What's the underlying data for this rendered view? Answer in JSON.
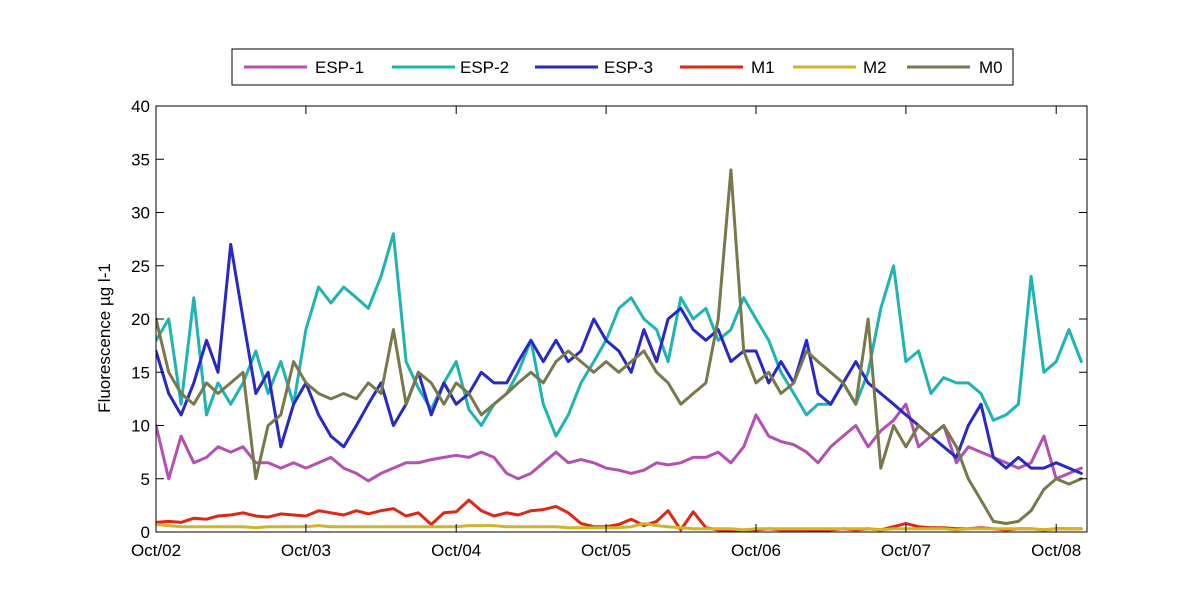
{
  "chart_data": {
    "type": "line",
    "title": "",
    "xlabel": "",
    "ylabel": "Fluorescence µg l-1",
    "xlim": [
      "2002-10-01",
      "2008-12-15"
    ],
    "ylim": [
      0,
      40
    ],
    "x_ticks": [
      "Oct/02",
      "Oct/03",
      "Oct/04",
      "Oct/05",
      "Oct/06",
      "Oct/07",
      "Oct/08"
    ],
    "x_tick_dates": [
      "2002-10-01",
      "2003-10-01",
      "2004-10-01",
      "2005-10-01",
      "2006-10-01",
      "2007-10-01",
      "2008-10-01"
    ],
    "y_ticks": [
      0,
      5,
      10,
      15,
      20,
      25,
      30,
      35,
      40
    ],
    "grid": false,
    "legend_position": "top",
    "series": [
      {
        "name": "ESP-1",
        "color": "#b450b4",
        "x": [
          "2002-10-01",
          "2002-11-01",
          "2002-12-01",
          "2003-01-01",
          "2003-02-01",
          "2003-03-01",
          "2003-04-01",
          "2003-05-01",
          "2003-06-01",
          "2003-07-01",
          "2003-08-01",
          "2003-09-01",
          "2003-10-01",
          "2003-11-01",
          "2003-12-01",
          "2004-01-01",
          "2004-02-01",
          "2004-03-01",
          "2004-04-01",
          "2004-05-01",
          "2004-06-01",
          "2004-07-01",
          "2004-08-01",
          "2004-09-01",
          "2004-10-01",
          "2004-11-01",
          "2004-12-01",
          "2005-01-01",
          "2005-02-01",
          "2005-03-01",
          "2005-04-01",
          "2005-05-01",
          "2005-06-01",
          "2005-07-01",
          "2005-08-01",
          "2005-09-01",
          "2005-10-01",
          "2005-11-01",
          "2005-12-01",
          "2006-01-01",
          "2006-02-01",
          "2006-03-01",
          "2006-04-01",
          "2006-05-01",
          "2006-06-01",
          "2006-07-01",
          "2006-08-01",
          "2006-09-01",
          "2006-10-01",
          "2006-11-01",
          "2006-12-01",
          "2007-01-01",
          "2007-02-01",
          "2007-03-01",
          "2007-04-01",
          "2007-05-01",
          "2007-06-01",
          "2007-07-01",
          "2007-08-01",
          "2007-09-01",
          "2007-10-01",
          "2007-11-01",
          "2007-12-01",
          "2008-01-01",
          "2008-02-01",
          "2008-03-01",
          "2008-04-01",
          "2008-05-01",
          "2008-06-01",
          "2008-07-01",
          "2008-08-01",
          "2008-09-01",
          "2008-10-01",
          "2008-11-01",
          "2008-12-01"
        ],
        "values": [
          10,
          5,
          9,
          6.5,
          7,
          8,
          7.5,
          8,
          6.5,
          6.5,
          6,
          6.5,
          6,
          6.5,
          7,
          6,
          5.5,
          4.8,
          5.5,
          6,
          6.5,
          6.5,
          6.8,
          7,
          7.2,
          7,
          7.5,
          7,
          5.5,
          5,
          5.5,
          6.5,
          7.5,
          6.5,
          6.8,
          6.5,
          6,
          5.8,
          5.5,
          5.8,
          6.5,
          6.3,
          6.5,
          7,
          7,
          7.5,
          6.5,
          8,
          11,
          9,
          8.5,
          8.2,
          7.5,
          6.5,
          8,
          9,
          10,
          8,
          9.5,
          10.5,
          12,
          8,
          9,
          10,
          6.5,
          8,
          7.5,
          7,
          6.5,
          6,
          6.5,
          9,
          5,
          5.5,
          6
        ]
      },
      {
        "name": "ESP-2",
        "color": "#1eb4b4",
        "x": [
          "2002-10-01",
          "2002-11-01",
          "2002-12-01",
          "2003-01-01",
          "2003-02-01",
          "2003-03-01",
          "2003-04-01",
          "2003-05-01",
          "2003-06-01",
          "2003-07-01",
          "2003-08-01",
          "2003-09-01",
          "2003-10-01",
          "2003-11-01",
          "2003-12-01",
          "2004-01-01",
          "2004-02-01",
          "2004-03-01",
          "2004-04-01",
          "2004-05-01",
          "2004-06-01",
          "2004-07-01",
          "2004-08-01",
          "2004-09-01",
          "2004-10-01",
          "2004-11-01",
          "2004-12-01",
          "2005-01-01",
          "2005-02-01",
          "2005-03-01",
          "2005-04-01",
          "2005-05-01",
          "2005-06-01",
          "2005-07-01",
          "2005-08-01",
          "2005-09-01",
          "2005-10-01",
          "2005-11-01",
          "2005-12-01",
          "2006-01-01",
          "2006-02-01",
          "2006-03-01",
          "2006-04-01",
          "2006-05-01",
          "2006-06-01",
          "2006-07-01",
          "2006-08-01",
          "2006-09-01",
          "2006-10-01",
          "2006-11-01",
          "2006-12-01",
          "2007-01-01",
          "2007-02-01",
          "2007-03-01",
          "2007-04-01",
          "2007-05-01",
          "2007-06-01",
          "2007-07-01",
          "2007-08-01",
          "2007-09-01",
          "2007-10-01",
          "2007-11-01",
          "2007-12-01",
          "2008-01-01",
          "2008-02-01",
          "2008-03-01",
          "2008-04-01",
          "2008-05-01",
          "2008-06-01",
          "2008-07-01",
          "2008-08-01",
          "2008-09-01",
          "2008-10-01",
          "2008-11-01",
          "2008-12-01"
        ],
        "values": [
          18,
          20,
          12,
          22,
          11,
          14,
          12,
          14,
          17,
          13,
          16,
          12,
          19,
          23,
          21.5,
          23,
          22,
          21,
          24,
          28,
          16,
          13.5,
          11.5,
          14,
          16,
          11.5,
          10,
          12,
          13,
          15,
          18,
          12,
          9,
          11,
          14,
          16,
          18,
          21,
          22,
          20,
          19,
          16,
          22,
          20,
          21,
          18,
          19,
          22,
          20,
          18,
          15,
          13,
          11,
          12,
          12,
          14,
          12,
          15,
          21,
          25,
          16,
          17,
          13,
          14.5,
          14,
          14,
          13,
          10.5,
          11,
          12,
          24,
          15,
          16,
          19,
          16
        ]
      },
      {
        "name": "ESP-3",
        "color": "#2828c8",
        "x": [
          "2002-10-01",
          "2002-11-01",
          "2002-12-01",
          "2003-01-01",
          "2003-02-01",
          "2003-03-01",
          "2003-04-01",
          "2003-05-01",
          "2003-06-01",
          "2003-07-01",
          "2003-08-01",
          "2003-09-01",
          "2003-10-01",
          "2003-11-01",
          "2003-12-01",
          "2004-01-01",
          "2004-02-01",
          "2004-03-01",
          "2004-04-01",
          "2004-05-01",
          "2004-06-01",
          "2004-07-01",
          "2004-08-01",
          "2004-09-01",
          "2004-10-01",
          "2004-11-01",
          "2004-12-01",
          "2005-01-01",
          "2005-02-01",
          "2005-03-01",
          "2005-04-01",
          "2005-05-01",
          "2005-06-01",
          "2005-07-01",
          "2005-08-01",
          "2005-09-01",
          "2005-10-01",
          "2005-11-01",
          "2005-12-01",
          "2006-01-01",
          "2006-02-01",
          "2006-03-01",
          "2006-04-01",
          "2006-05-01",
          "2006-06-01",
          "2006-07-01",
          "2006-08-01",
          "2006-09-01",
          "2006-10-01",
          "2006-11-01",
          "2006-12-01",
          "2007-01-01",
          "2007-02-01",
          "2007-03-01",
          "2007-04-01",
          "2007-05-01",
          "2007-06-01",
          "2007-07-01",
          "2007-08-01",
          "2007-09-01",
          "2007-10-01",
          "2007-11-01",
          "2007-12-01",
          "2008-01-01",
          "2008-02-01",
          "2008-03-01",
          "2008-04-01",
          "2008-05-01",
          "2008-06-01",
          "2008-07-01",
          "2008-08-01",
          "2008-09-01",
          "2008-10-01",
          "2008-11-01",
          "2008-12-01"
        ],
        "values": [
          17,
          13,
          11,
          14,
          18,
          15,
          27,
          20,
          13,
          15,
          8,
          12,
          14,
          11,
          9,
          8,
          10,
          12,
          14,
          10,
          12,
          15,
          11,
          14,
          12,
          13,
          15,
          14,
          14,
          16,
          18,
          16,
          18,
          16,
          17,
          20,
          18,
          17,
          15,
          19,
          16,
          20,
          21,
          19,
          18,
          19,
          16,
          17,
          17,
          14,
          16,
          14,
          18,
          13,
          12,
          14,
          16,
          14,
          13,
          12,
          11,
          10,
          9,
          8,
          7,
          10,
          12,
          7,
          6,
          7,
          6,
          6,
          6.5,
          6,
          5.5
        ]
      },
      {
        "name": "M1",
        "color": "#dc2814",
        "x": [
          "2002-10-01",
          "2002-11-01",
          "2002-12-01",
          "2003-01-01",
          "2003-02-01",
          "2003-03-01",
          "2003-04-01",
          "2003-05-01",
          "2003-06-01",
          "2003-07-01",
          "2003-08-01",
          "2003-09-01",
          "2003-10-01",
          "2003-11-01",
          "2003-12-01",
          "2004-01-01",
          "2004-02-01",
          "2004-03-01",
          "2004-04-01",
          "2004-05-01",
          "2004-06-01",
          "2004-07-01",
          "2004-08-01",
          "2004-09-01",
          "2004-10-01",
          "2004-11-01",
          "2004-12-01",
          "2005-01-01",
          "2005-02-01",
          "2005-03-01",
          "2005-04-01",
          "2005-05-01",
          "2005-06-01",
          "2005-07-01",
          "2005-08-01",
          "2005-09-01",
          "2005-10-01",
          "2005-11-01",
          "2005-12-01",
          "2006-01-01",
          "2006-02-01",
          "2006-03-01",
          "2006-04-01",
          "2006-05-01",
          "2006-06-01",
          "2006-07-01",
          "2006-08-01",
          "2006-09-01",
          "2006-10-01",
          "2006-11-01",
          "2006-12-01",
          "2007-01-01",
          "2007-02-01",
          "2007-03-01",
          "2007-04-01",
          "2007-05-01",
          "2007-06-01",
          "2007-07-01",
          "2007-08-01",
          "2007-09-01",
          "2007-10-01",
          "2007-11-01",
          "2007-12-01",
          "2008-01-01",
          "2008-02-01",
          "2008-03-01",
          "2008-04-01",
          "2008-05-01",
          "2008-06-01",
          "2008-07-01",
          "2008-08-01",
          "2008-09-01",
          "2008-10-01",
          "2008-11-01",
          "2008-12-01"
        ],
        "values": [
          0.9,
          1,
          0.9,
          1.3,
          1.2,
          1.5,
          1.6,
          1.8,
          1.5,
          1.4,
          1.7,
          1.6,
          1.5,
          2,
          1.8,
          1.6,
          2,
          1.7,
          2,
          2.2,
          1.5,
          1.8,
          0.7,
          1.8,
          1.9,
          3,
          2,
          1.5,
          1.8,
          1.6,
          2,
          2.1,
          2.4,
          1.8,
          0.8,
          0.5,
          0.5,
          0.7,
          1.2,
          0.6,
          1,
          2,
          0.2,
          1.9,
          0.4,
          0.2,
          0.1,
          0.2,
          0.2,
          0.3,
          0.2,
          0.2,
          0.2,
          0.1,
          0.2,
          0.3,
          0.2,
          0.3,
          0.2,
          0.5,
          0.8,
          0.5,
          0.4,
          0.4,
          0.3,
          0.3,
          0.4,
          0.3,
          0.2,
          0.3,
          0.3,
          0.2,
          0.3,
          0.3,
          0.3
        ]
      },
      {
        "name": "M2",
        "color": "#d2b428",
        "x": [
          "2002-10-01",
          "2002-11-01",
          "2002-12-01",
          "2003-01-01",
          "2003-02-01",
          "2003-03-01",
          "2003-04-01",
          "2003-05-01",
          "2003-06-01",
          "2003-07-01",
          "2003-08-01",
          "2003-09-01",
          "2003-10-01",
          "2003-11-01",
          "2003-12-01",
          "2004-01-01",
          "2004-02-01",
          "2004-03-01",
          "2004-04-01",
          "2004-05-01",
          "2004-06-01",
          "2004-07-01",
          "2004-08-01",
          "2004-09-01",
          "2004-10-01",
          "2004-11-01",
          "2004-12-01",
          "2005-01-01",
          "2005-02-01",
          "2005-03-01",
          "2005-04-01",
          "2005-05-01",
          "2005-06-01",
          "2005-07-01",
          "2005-08-01",
          "2005-09-01",
          "2005-10-01",
          "2005-11-01",
          "2005-12-01",
          "2006-01-01",
          "2006-02-01",
          "2006-03-01",
          "2006-04-01",
          "2006-05-01",
          "2006-06-01",
          "2006-07-01",
          "2006-08-01",
          "2006-09-01",
          "2006-10-01",
          "2006-11-01",
          "2006-12-01",
          "2007-01-01",
          "2007-02-01",
          "2007-03-01",
          "2007-04-01",
          "2007-05-01",
          "2007-06-01",
          "2007-07-01",
          "2007-08-01",
          "2007-09-01",
          "2007-10-01",
          "2007-11-01",
          "2007-12-01",
          "2008-01-01",
          "2008-02-01",
          "2008-03-01",
          "2008-04-01",
          "2008-05-01",
          "2008-06-01",
          "2008-07-01",
          "2008-08-01",
          "2008-09-01",
          "2008-10-01",
          "2008-11-01",
          "2008-12-01"
        ],
        "values": [
          0.7,
          0.6,
          0.5,
          0.5,
          0.5,
          0.5,
          0.5,
          0.5,
          0.4,
          0.5,
          0.5,
          0.5,
          0.5,
          0.6,
          0.5,
          0.5,
          0.5,
          0.5,
          0.5,
          0.5,
          0.5,
          0.5,
          0.5,
          0.5,
          0.5,
          0.6,
          0.6,
          0.6,
          0.5,
          0.5,
          0.5,
          0.5,
          0.5,
          0.4,
          0.4,
          0.4,
          0.4,
          0.4,
          0.5,
          0.8,
          0.6,
          0.5,
          0.4,
          0.3,
          0.3,
          0.3,
          0.3,
          0.2,
          0.3,
          0.3,
          0.3,
          0.3,
          0.3,
          0.3,
          0.3,
          0.3,
          0.3,
          0.3,
          0.2,
          0.3,
          0.3,
          0.3,
          0.3,
          0.3,
          0.2,
          0.3,
          0.3,
          0.3,
          0.3,
          0.3,
          0.3,
          0.2,
          0.3,
          0.3,
          0.3
        ]
      },
      {
        "name": "M0",
        "color": "#78784b",
        "x": [
          "2002-10-01",
          "2002-11-01",
          "2002-12-01",
          "2003-01-01",
          "2003-02-01",
          "2003-03-01",
          "2003-04-01",
          "2003-05-01",
          "2003-06-01",
          "2003-07-01",
          "2003-08-01",
          "2003-09-01",
          "2003-10-01",
          "2003-11-01",
          "2003-12-01",
          "2004-01-01",
          "2004-02-01",
          "2004-03-01",
          "2004-04-01",
          "2004-05-01",
          "2004-06-01",
          "2004-07-01",
          "2004-08-01",
          "2004-09-01",
          "2004-10-01",
          "2004-11-01",
          "2004-12-01",
          "2005-01-01",
          "2005-02-01",
          "2005-03-01",
          "2005-04-01",
          "2005-05-01",
          "2005-06-01",
          "2005-07-01",
          "2005-08-01",
          "2005-09-01",
          "2005-10-01",
          "2005-11-01",
          "2005-12-01",
          "2006-01-01",
          "2006-02-01",
          "2006-03-01",
          "2006-04-01",
          "2006-05-01",
          "2006-06-01",
          "2006-07-01",
          "2006-08-01",
          "2006-09-01",
          "2006-10-01",
          "2006-11-01",
          "2006-12-01",
          "2007-01-01",
          "2007-02-01",
          "2007-03-01",
          "2007-04-01",
          "2007-05-01",
          "2007-06-01",
          "2007-07-01",
          "2007-08-01",
          "2007-09-01",
          "2007-10-01",
          "2007-11-01",
          "2007-12-01",
          "2008-01-01",
          "2008-02-01",
          "2008-03-01",
          "2008-04-01",
          "2008-05-01",
          "2008-06-01",
          "2008-07-01",
          "2008-08-01",
          "2008-09-01",
          "2008-10-01",
          "2008-11-01",
          "2008-12-01"
        ],
        "values": [
          20,
          15,
          13,
          12,
          14,
          13,
          14,
          15,
          5,
          10,
          11,
          16,
          14,
          13,
          12.5,
          13,
          12.5,
          14,
          13,
          19,
          12,
          15,
          14,
          12,
          14,
          13,
          11,
          12,
          13,
          14,
          15,
          14,
          16,
          17,
          16,
          15,
          16,
          15,
          16,
          17,
          15,
          14,
          12,
          13,
          14,
          20,
          34,
          17,
          14,
          15,
          13,
          14,
          17,
          16,
          15,
          14,
          12,
          20,
          6,
          10,
          8,
          10,
          9,
          10,
          8,
          5,
          3,
          1,
          0.8,
          1,
          2,
          4,
          5,
          4.5,
          5
        ]
      }
    ]
  }
}
